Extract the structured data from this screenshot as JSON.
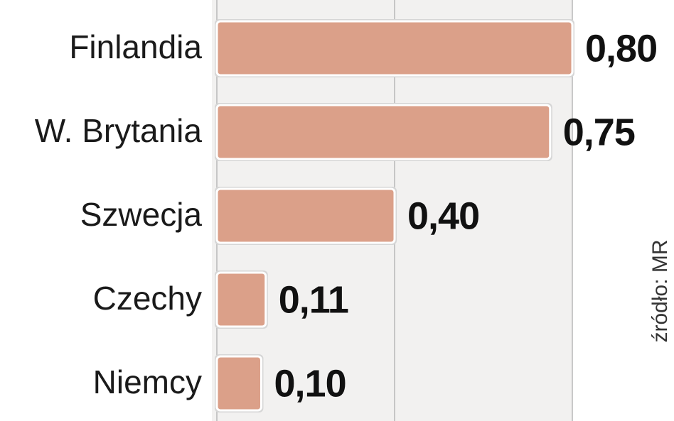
{
  "chart_data": {
    "type": "hbar",
    "categories": [
      "Finlandia",
      "W. Brytania",
      "Szwecja",
      "Czechy",
      "Niemcy"
    ],
    "values": [
      0.8,
      0.75,
      0.4,
      0.11,
      0.1
    ],
    "value_labels": [
      "0,80",
      "0,75",
      "0,40",
      "0,11",
      "0,10"
    ],
    "color": "#dba089",
    "xlim": [
      0,
      0.8
    ],
    "xticks": [
      0,
      0.4,
      0.8
    ],
    "grid": true,
    "source": "źródło: MR"
  }
}
